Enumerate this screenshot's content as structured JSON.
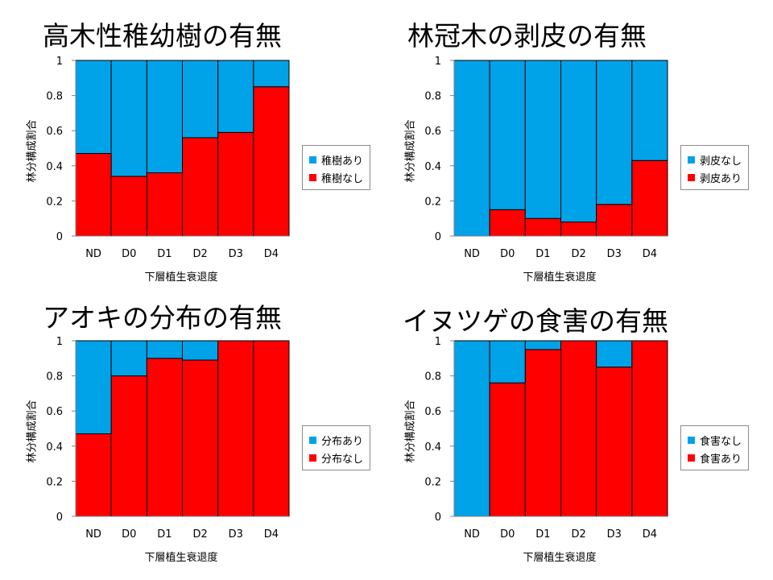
{
  "chart_data": [
    {
      "type": "bar",
      "stacked": true,
      "title": "高木性稚幼樹の有無",
      "xlabel": "下層植生衰退度",
      "ylabel": "林分構成割合",
      "ylim": [
        0,
        1
      ],
      "yticks": [
        "0",
        "0.2",
        "0.4",
        "0.6",
        "0.8",
        "1"
      ],
      "categories": [
        "ND",
        "D0",
        "D1",
        "D2",
        "D3",
        "D4"
      ],
      "series": [
        {
          "name": "稚樹なし",
          "color": "#ff0000",
          "values": [
            0.47,
            0.34,
            0.36,
            0.56,
            0.59,
            0.85
          ]
        },
        {
          "name": "稚樹あり",
          "color": "#00a2e8",
          "values": [
            0.53,
            0.66,
            0.64,
            0.44,
            0.41,
            0.15
          ]
        }
      ],
      "legend": [
        {
          "name": "稚樹あり",
          "color": "#00a2e8"
        },
        {
          "name": "稚樹なし",
          "color": "#ff0000"
        }
      ]
    },
    {
      "type": "bar",
      "stacked": true,
      "title": "林冠木の剥皮の有無",
      "xlabel": "下層植生衰退度",
      "ylabel": "林分構成割合",
      "ylim": [
        0,
        1
      ],
      "yticks": [
        "0",
        "0.2",
        "0.4",
        "0.6",
        "0.8",
        "1"
      ],
      "categories": [
        "ND",
        "D0",
        "D1",
        "D2",
        "D3",
        "D4"
      ],
      "series": [
        {
          "name": "剥皮あり",
          "color": "#ff0000",
          "values": [
            0.0,
            0.15,
            0.1,
            0.08,
            0.18,
            0.43
          ]
        },
        {
          "name": "剥皮なし",
          "color": "#00a2e8",
          "values": [
            1.0,
            0.85,
            0.9,
            0.92,
            0.82,
            0.57
          ]
        }
      ],
      "legend": [
        {
          "name": "剥皮なし",
          "color": "#00a2e8"
        },
        {
          "name": "剥皮あり",
          "color": "#ff0000"
        }
      ]
    },
    {
      "type": "bar",
      "stacked": true,
      "title": "アオキの分布の有無",
      "xlabel": "下層植生衰退度",
      "ylabel": "林分構成割合",
      "ylim": [
        0,
        1
      ],
      "yticks": [
        "0",
        "0.2",
        "0.4",
        "0.6",
        "0.8",
        "1"
      ],
      "categories": [
        "ND",
        "D0",
        "D1",
        "D2",
        "D3",
        "D4"
      ],
      "series": [
        {
          "name": "分布なし",
          "color": "#ff0000",
          "values": [
            0.47,
            0.8,
            0.9,
            0.89,
            1.0,
            1.0
          ]
        },
        {
          "name": "分布あり",
          "color": "#00a2e8",
          "values": [
            0.53,
            0.2,
            0.1,
            0.11,
            0.0,
            0.0
          ]
        }
      ],
      "legend": [
        {
          "name": "分布あり",
          "color": "#00a2e8"
        },
        {
          "name": "分布なし",
          "color": "#ff0000"
        }
      ]
    },
    {
      "type": "bar",
      "stacked": true,
      "title": "イヌツゲの食害の有無",
      "xlabel": "下層植生衰退度",
      "ylabel": "林分構成割合",
      "ylim": [
        0,
        1
      ],
      "yticks": [
        "0",
        "0.2",
        "0.4",
        "0.6",
        "0.8",
        "1"
      ],
      "categories": [
        "ND",
        "D0",
        "D1",
        "D2",
        "D3",
        "D4"
      ],
      "series": [
        {
          "name": "食害あり",
          "color": "#ff0000",
          "values": [
            0.0,
            0.76,
            0.95,
            1.0,
            0.85,
            1.0
          ]
        },
        {
          "name": "食害なし",
          "color": "#00a2e8",
          "values": [
            1.0,
            0.24,
            0.05,
            0.0,
            0.15,
            0.0
          ]
        }
      ],
      "legend": [
        {
          "name": "食害なし",
          "color": "#00a2e8"
        },
        {
          "name": "食害あり",
          "color": "#ff0000"
        }
      ]
    }
  ]
}
